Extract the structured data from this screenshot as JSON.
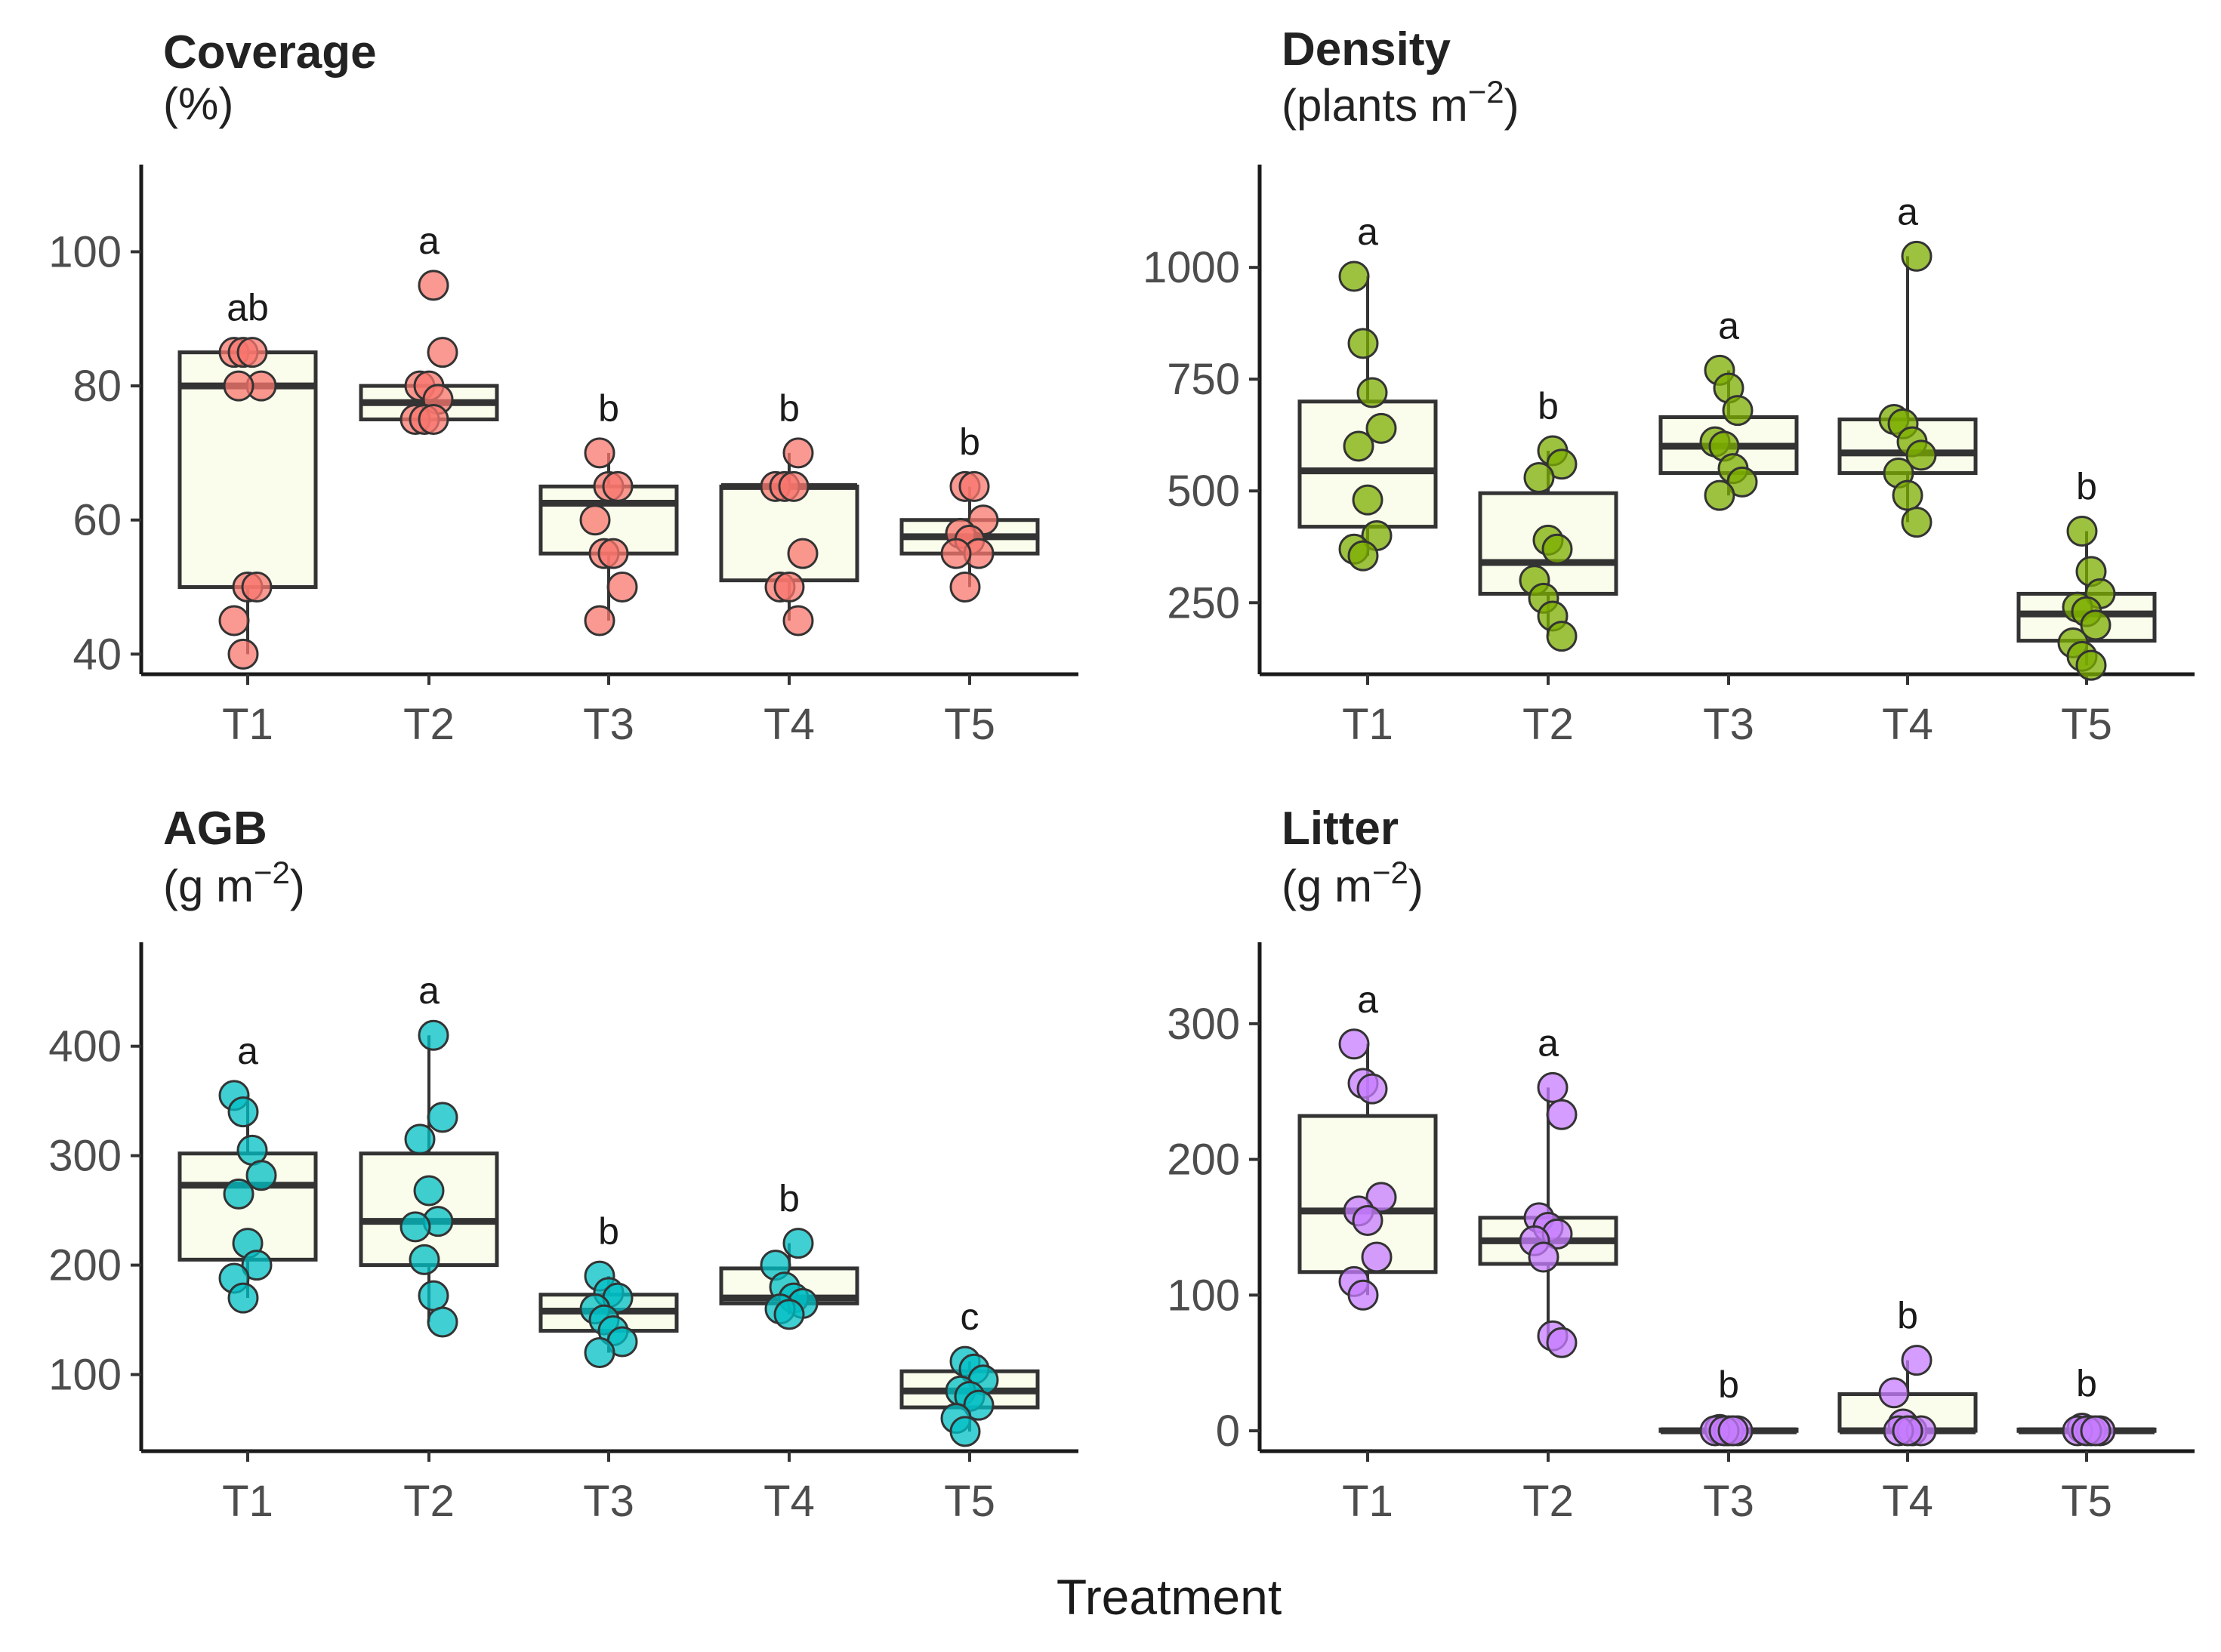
{
  "figure": {
    "x_axis_title": "Treatment",
    "box_fill": "#fafcec",
    "box_stroke": "#333333"
  },
  "chart_data": [
    {
      "type": "boxplot",
      "title": "Coverage",
      "unit": "(%)",
      "point_color": "#f8766d",
      "xlabel": "Treatment",
      "ylim": [
        37,
        113
      ],
      "yticks": [
        40,
        60,
        80,
        100
      ],
      "categories": [
        "T1",
        "T2",
        "T3",
        "T4",
        "T5"
      ],
      "groups": [
        {
          "category": "T1",
          "letter": "ab",
          "q1": 50,
          "median": 80,
          "q3": 85,
          "whisker_low": 40,
          "whisker_high": 85,
          "points": [
            85,
            85,
            85,
            80,
            80,
            50,
            50,
            45,
            40
          ]
        },
        {
          "category": "T2",
          "letter": "a",
          "q1": 75,
          "median": 77.5,
          "q3": 80,
          "whisker_low": 75,
          "whisker_high": 80,
          "points": [
            95,
            85,
            80,
            80,
            78,
            75,
            75,
            75
          ]
        },
        {
          "category": "T3",
          "letter": "b",
          "q1": 55,
          "median": 62.5,
          "q3": 65,
          "whisker_low": 45,
          "whisker_high": 70,
          "points": [
            70,
            65,
            65,
            60,
            55,
            55,
            50,
            45
          ]
        },
        {
          "category": "T4",
          "letter": "b",
          "q1": 51,
          "median": 65,
          "q3": 65,
          "whisker_low": 45,
          "whisker_high": 70,
          "points": [
            70,
            65,
            65,
            65,
            55,
            50,
            50,
            45
          ]
        },
        {
          "category": "T5",
          "letter": "b",
          "q1": 55,
          "median": 57.5,
          "q3": 60,
          "whisker_low": 50,
          "whisker_high": 65,
          "points": [
            65,
            65,
            60,
            58,
            57,
            55,
            55,
            50
          ]
        }
      ]
    },
    {
      "type": "boxplot",
      "title": "Density",
      "unit": "(plants m",
      "unit_exponent": "−2",
      "unit_close": ")",
      "point_color": "#7cae00",
      "xlabel": "Treatment",
      "ylim": [
        90,
        1230
      ],
      "yticks": [
        250,
        500,
        750,
        1000
      ],
      "categories": [
        "T1",
        "T2",
        "T3",
        "T4",
        "T5"
      ],
      "groups": [
        {
          "category": "T1",
          "letter": "a",
          "q1": 420,
          "median": 545,
          "q3": 700,
          "whisker_low": 355,
          "whisker_high": 980,
          "points": [
            980,
            830,
            720,
            640,
            600,
            480,
            400,
            370,
            355
          ]
        },
        {
          "category": "T2",
          "letter": "b",
          "q1": 270,
          "median": 340,
          "q3": 495,
          "whisker_low": 175,
          "whisker_high": 590,
          "points": [
            590,
            560,
            530,
            390,
            370,
            300,
            260,
            220,
            175
          ]
        },
        {
          "category": "T3",
          "letter": "a",
          "q1": 540,
          "median": 600,
          "q3": 665,
          "whisker_low": 490,
          "whisker_high": 770,
          "points": [
            770,
            730,
            680,
            610,
            600,
            550,
            520,
            490
          ]
        },
        {
          "category": "T4",
          "letter": "a",
          "q1": 540,
          "median": 585,
          "q3": 660,
          "whisker_low": 430,
          "whisker_high": 1025,
          "points": [
            1025,
            660,
            650,
            610,
            580,
            540,
            490,
            430
          ]
        },
        {
          "category": "T5",
          "letter": "b",
          "q1": 165,
          "median": 225,
          "q3": 270,
          "whisker_low": 110,
          "whisker_high": 410,
          "points": [
            410,
            320,
            270,
            240,
            230,
            200,
            160,
            130,
            110
          ]
        }
      ]
    },
    {
      "type": "boxplot",
      "title": "AGB",
      "unit": "(g m",
      "unit_exponent": "−2",
      "unit_close": ")",
      "point_color": "#00bfc4",
      "xlabel": "Treatment",
      "ylim": [
        30,
        495
      ],
      "yticks": [
        100,
        200,
        300,
        400
      ],
      "categories": [
        "T1",
        "T2",
        "T3",
        "T4",
        "T5"
      ],
      "groups": [
        {
          "category": "T1",
          "letter": "a",
          "q1": 205,
          "median": 273,
          "q3": 302,
          "whisker_low": 170,
          "whisker_high": 355,
          "points": [
            355,
            340,
            305,
            282,
            265,
            220,
            200,
            188,
            170
          ]
        },
        {
          "category": "T2",
          "letter": "a",
          "q1": 200,
          "median": 240,
          "q3": 302,
          "whisker_low": 148,
          "whisker_high": 410,
          "points": [
            410,
            335,
            315,
            268,
            240,
            235,
            205,
            172,
            148
          ]
        },
        {
          "category": "T3",
          "letter": "b",
          "q1": 140,
          "median": 158,
          "q3": 173,
          "whisker_low": 120,
          "whisker_high": 190,
          "points": [
            190,
            175,
            170,
            160,
            150,
            140,
            130,
            120
          ]
        },
        {
          "category": "T4",
          "letter": "b",
          "q1": 165,
          "median": 170,
          "q3": 197,
          "whisker_low": 155,
          "whisker_high": 220,
          "points": [
            220,
            200,
            180,
            170,
            165,
            160,
            155
          ]
        },
        {
          "category": "T5",
          "letter": "c",
          "q1": 70,
          "median": 85,
          "q3": 103,
          "whisker_low": 48,
          "whisker_high": 112,
          "points": [
            112,
            105,
            95,
            85,
            80,
            72,
            60,
            48
          ]
        }
      ]
    },
    {
      "type": "boxplot",
      "title": "Litter",
      "unit": "(g m",
      "unit_exponent": "−2",
      "unit_close": ")",
      "point_color": "#c77cff",
      "xlabel": "Treatment",
      "ylim": [
        -15,
        360
      ],
      "yticks": [
        0,
        100,
        200,
        300
      ],
      "categories": [
        "T1",
        "T2",
        "T3",
        "T4",
        "T5"
      ],
      "groups": [
        {
          "category": "T1",
          "letter": "a",
          "q1": 117,
          "median": 162,
          "q3": 232,
          "whisker_low": 100,
          "whisker_high": 285,
          "points": [
            285,
            256,
            252,
            172,
            162,
            155,
            128,
            110,
            100
          ]
        },
        {
          "category": "T2",
          "letter": "a",
          "q1": 123,
          "median": 140,
          "q3": 157,
          "whisker_low": 65,
          "whisker_high": 253,
          "points": [
            253,
            233,
            157,
            150,
            145,
            140,
            128,
            70,
            65
          ]
        },
        {
          "category": "T3",
          "letter": "b",
          "q1": 0,
          "median": 0,
          "q3": 1,
          "whisker_low": 0,
          "whisker_high": 1,
          "points": [
            1,
            0,
            0,
            0,
            0,
            0
          ]
        },
        {
          "category": "T4",
          "letter": "b",
          "q1": 0,
          "median": 0,
          "q3": 27,
          "whisker_low": 0,
          "whisker_high": 52,
          "points": [
            52,
            28,
            5,
            0,
            0,
            0,
            0
          ]
        },
        {
          "category": "T5",
          "letter": "b",
          "q1": 0,
          "median": 0,
          "q3": 1,
          "whisker_low": 0,
          "whisker_high": 1,
          "points": [
            2,
            0,
            0,
            0,
            0,
            0
          ]
        }
      ]
    }
  ]
}
